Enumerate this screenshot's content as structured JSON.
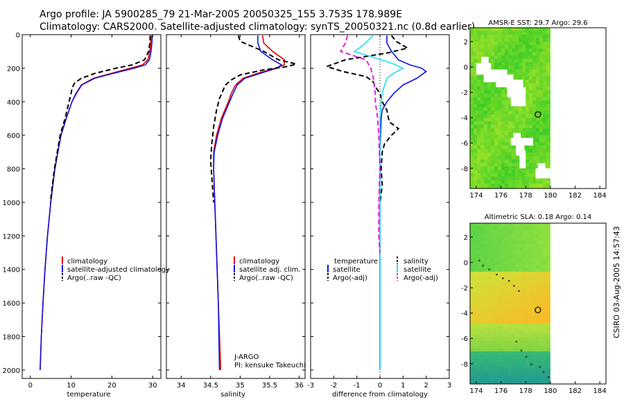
{
  "header": {
    "line1": "Argo profile: JA 5900285_79 21-Mar-2005 20050325_155 3.753S 178.989E",
    "line2": "Climatology: CARS2000. Satellite-adjusted climatology: synTS_20050321.nc (0.8d earlier)"
  },
  "side_label": "CSIRO 03-Aug-2005 14:57:43",
  "colors": {
    "clim": "#e00000",
    "sat": "#1010e0",
    "argo": "#000000",
    "sat_sal": "#20e0f0",
    "argo_sal": "#e020e0"
  },
  "chart_data": [
    {
      "type": "line",
      "name": "temperature-panel",
      "xlabel": "temperature",
      "ylabel": "",
      "xlim": [
        -2,
        32
      ],
      "ylim": [
        2050,
        0
      ],
      "xticks": [
        "0",
        "10",
        "20",
        "30"
      ],
      "xtick_values": [
        0,
        10,
        20,
        30
      ],
      "yticks": [
        "0",
        "200",
        "400",
        "600",
        "800",
        "1000",
        "1200",
        "1400",
        "1600",
        "1800",
        "2000"
      ],
      "ytick_values": [
        0,
        200,
        400,
        600,
        800,
        1000,
        1200,
        1400,
        1600,
        1800,
        2000
      ],
      "legend": [
        "climatology",
        "satellite-adjusted climatology",
        "Argo(..raw -QC)"
      ],
      "series": [
        {
          "name": "climatology",
          "style": "solid",
          "color": "#e00000",
          "depth": [
            5,
            50,
            100,
            150,
            180,
            200,
            230,
            260,
            300,
            350,
            400,
            500,
            600,
            800,
            1000,
            1200,
            1400,
            1600,
            1800,
            2000
          ],
          "values": [
            29.6,
            29.5,
            29.3,
            28.8,
            27.5,
            24.5,
            20.0,
            15.5,
            12.5,
            11.2,
            10.2,
            8.8,
            7.5,
            6.0,
            5.0,
            4.2,
            3.6,
            3.1,
            2.7,
            2.4
          ]
        },
        {
          "name": "satellite-adjusted climatology",
          "style": "solid",
          "color": "#1010e0",
          "depth": [
            5,
            50,
            100,
            150,
            180,
            200,
            230,
            260,
            300,
            350,
            400,
            500,
            600,
            800,
            1000,
            1200,
            1400,
            1600,
            1800,
            2000
          ],
          "values": [
            29.9,
            29.8,
            29.6,
            29.2,
            28.2,
            25.5,
            20.5,
            15.8,
            12.6,
            11.3,
            10.2,
            8.8,
            7.5,
            6.0,
            5.0,
            4.2,
            3.6,
            3.1,
            2.7,
            2.4
          ]
        },
        {
          "name": "Argo(..raw -QC)",
          "style": "dashed",
          "color": "#000000",
          "depth": [
            5,
            50,
            100,
            150,
            180,
            200,
            230,
            260,
            290,
            320,
            350,
            400,
            500,
            600,
            800,
            1000
          ],
          "values": [
            29.4,
            29.3,
            29.0,
            28.0,
            25.0,
            21.0,
            16.0,
            12.5,
            10.8,
            10.2,
            10.0,
            9.5,
            8.5,
            7.3,
            5.9,
            4.9
          ]
        }
      ]
    },
    {
      "type": "line",
      "name": "salinity-panel",
      "xlabel": "salinity",
      "ylabel": "",
      "xlim": [
        33.75,
        36.1
      ],
      "ylim": [
        2050,
        0
      ],
      "xticks": [
        "34",
        "34.5",
        "35",
        "35.5",
        "36"
      ],
      "xtick_values": [
        34,
        34.5,
        35,
        35.5,
        36
      ],
      "legend": [
        "climatology",
        "satellite adj. clim.",
        "Argo(..raw -QC)"
      ],
      "annotation": [
        "J-ARGO",
        "PI: kensuke Takeuchi"
      ],
      "series": [
        {
          "name": "climatology",
          "style": "solid",
          "color": "#e00000",
          "depth": [
            5,
            50,
            100,
            150,
            180,
            200,
            230,
            260,
            300,
            350,
            400,
            500,
            600,
            700,
            800,
            1000,
            1200,
            1400,
            1600,
            1800,
            2000
          ],
          "values": [
            35.38,
            35.4,
            35.55,
            35.75,
            35.75,
            35.6,
            35.3,
            35.05,
            34.92,
            34.85,
            34.8,
            34.68,
            34.6,
            34.55,
            34.55,
            34.57,
            34.59,
            34.61,
            34.63,
            34.65,
            34.67
          ]
        },
        {
          "name": "satellite adj. clim.",
          "style": "solid",
          "color": "#1010e0",
          "depth": [
            5,
            50,
            100,
            150,
            180,
            200,
            230,
            260,
            300,
            350,
            400,
            500,
            600,
            700,
            800,
            1000,
            1200,
            1400,
            1600,
            1800,
            2000
          ],
          "values": [
            35.3,
            35.3,
            35.35,
            35.55,
            35.7,
            35.62,
            35.35,
            35.08,
            34.95,
            34.88,
            34.82,
            34.7,
            34.62,
            34.56,
            34.55,
            34.57,
            34.59,
            34.61,
            34.63,
            34.64,
            34.65
          ]
        },
        {
          "name": "Argo(..raw -QC)",
          "style": "dashed",
          "color": "#000000",
          "depth": [
            5,
            40,
            70,
            100,
            150,
            175,
            190,
            210,
            240,
            270,
            300,
            340,
            380,
            450,
            550,
            650,
            750,
            850,
            1000
          ],
          "values": [
            34.97,
            35.0,
            35.2,
            35.4,
            35.65,
            35.95,
            35.8,
            35.4,
            35.0,
            34.85,
            34.75,
            34.7,
            34.65,
            34.6,
            34.55,
            34.52,
            34.5,
            34.52,
            34.55
          ]
        }
      ]
    },
    {
      "type": "line",
      "name": "difference-panel",
      "xlabel": "difference from climatology",
      "ylabel": "",
      "xlim": [
        -3,
        3
      ],
      "ylim": [
        2050,
        0
      ],
      "xticks": [
        "-3",
        "-2",
        "-1",
        "0",
        "1",
        "2",
        "3"
      ],
      "xtick_values": [
        -3,
        -2,
        -1,
        0,
        1,
        2,
        3
      ],
      "legend_left": [
        "temperature",
        "satellite",
        "Argo(-adj)"
      ],
      "legend_right": [
        "salinity",
        "satellite",
        "Argo(-adj)"
      ],
      "series": [
        {
          "name": "temperature satellite",
          "style": "solid",
          "color": "#1010e0",
          "depth": [
            5,
            50,
            100,
            150,
            180,
            200,
            220,
            260,
            300,
            350,
            400,
            450,
            500,
            700,
            1000,
            2000
          ],
          "values": [
            0.3,
            0.3,
            0.5,
            0.8,
            1.3,
            1.8,
            2.0,
            1.6,
            1.0,
            0.6,
            0.3,
            0.1,
            0.05,
            0.0,
            0.0,
            0.0
          ]
        },
        {
          "name": "temperature Argo(-adj)",
          "style": "dashed",
          "color": "#000000",
          "depth": [
            5,
            40,
            80,
            110,
            150,
            190,
            220,
            250,
            280,
            310,
            350,
            400,
            450,
            520,
            560,
            600,
            650,
            700,
            800,
            900,
            1000
          ],
          "values": [
            0.5,
            0.7,
            1.2,
            0.3,
            -1.5,
            -2.3,
            -1.6,
            -0.6,
            -0.3,
            -0.2,
            0.0,
            0.1,
            0.3,
            0.4,
            0.8,
            0.5,
            0.2,
            0.1,
            0.05,
            0.1,
            0.0
          ]
        },
        {
          "name": "salinity satellite",
          "style": "solid",
          "color": "#20e0f0",
          "depth": [
            5,
            60,
            100,
            130,
            170,
            200,
            230,
            260,
            300,
            350,
            400,
            500,
            700,
            1000,
            2000
          ],
          "values": [
            -0.3,
            -0.7,
            -1.1,
            -0.4,
            0.5,
            1.0,
            0.6,
            0.3,
            0.2,
            0.1,
            0.05,
            0.0,
            0.0,
            0.0,
            0.0
          ]
        },
        {
          "name": "salinity Argo(-adj)",
          "style": "dashed",
          "color": "#e020e0",
          "depth": [
            5,
            50,
            100,
            150,
            200,
            250,
            300,
            350,
            400,
            450,
            500,
            600,
            800,
            1000,
            1200,
            1300
          ],
          "values": [
            -1.4,
            -1.5,
            -1.7,
            -0.6,
            -0.4,
            -0.3,
            -0.25,
            -0.2,
            -0.2,
            -0.15,
            -0.1,
            -0.05,
            0.0,
            -0.05,
            -0.05,
            0.0
          ]
        }
      ]
    },
    {
      "type": "heatmap",
      "name": "sst-map",
      "title": "AMSR-E SST: 29.7 Argo: 29.6",
      "xlim": [
        173.5,
        184.5
      ],
      "ylim": [
        -9.6,
        3.1
      ],
      "xticks": [
        "174",
        "176",
        "178",
        "180",
        "182",
        "184"
      ],
      "xtick_values": [
        174,
        176,
        178,
        180,
        182,
        184
      ],
      "yticks": [
        "2",
        "0",
        "-2",
        "-4",
        "-6",
        "-8"
      ],
      "ytick_values": [
        2,
        0,
        -2,
        -4,
        -6,
        -8
      ],
      "data_lon_max": 180,
      "argo_position": [
        178.989,
        -3.753
      ]
    },
    {
      "type": "heatmap",
      "name": "sla-map",
      "title": "Altimetric SLA: 0.18 Argo: 0.14",
      "xlim": [
        173.5,
        184.5
      ],
      "ylim": [
        -9.6,
        3.1
      ],
      "xticks": [
        "174",
        "176",
        "178",
        "180",
        "182",
        "184"
      ],
      "xtick_values": [
        174,
        176,
        178,
        180,
        182,
        184
      ],
      "yticks": [
        "2",
        "0",
        "-2",
        "-4",
        "-6",
        "-8"
      ],
      "ytick_values": [
        2,
        0,
        -2,
        -4,
        -6,
        -8
      ],
      "data_lon_max": 180,
      "argo_position": [
        178.989,
        -3.753
      ]
    }
  ]
}
